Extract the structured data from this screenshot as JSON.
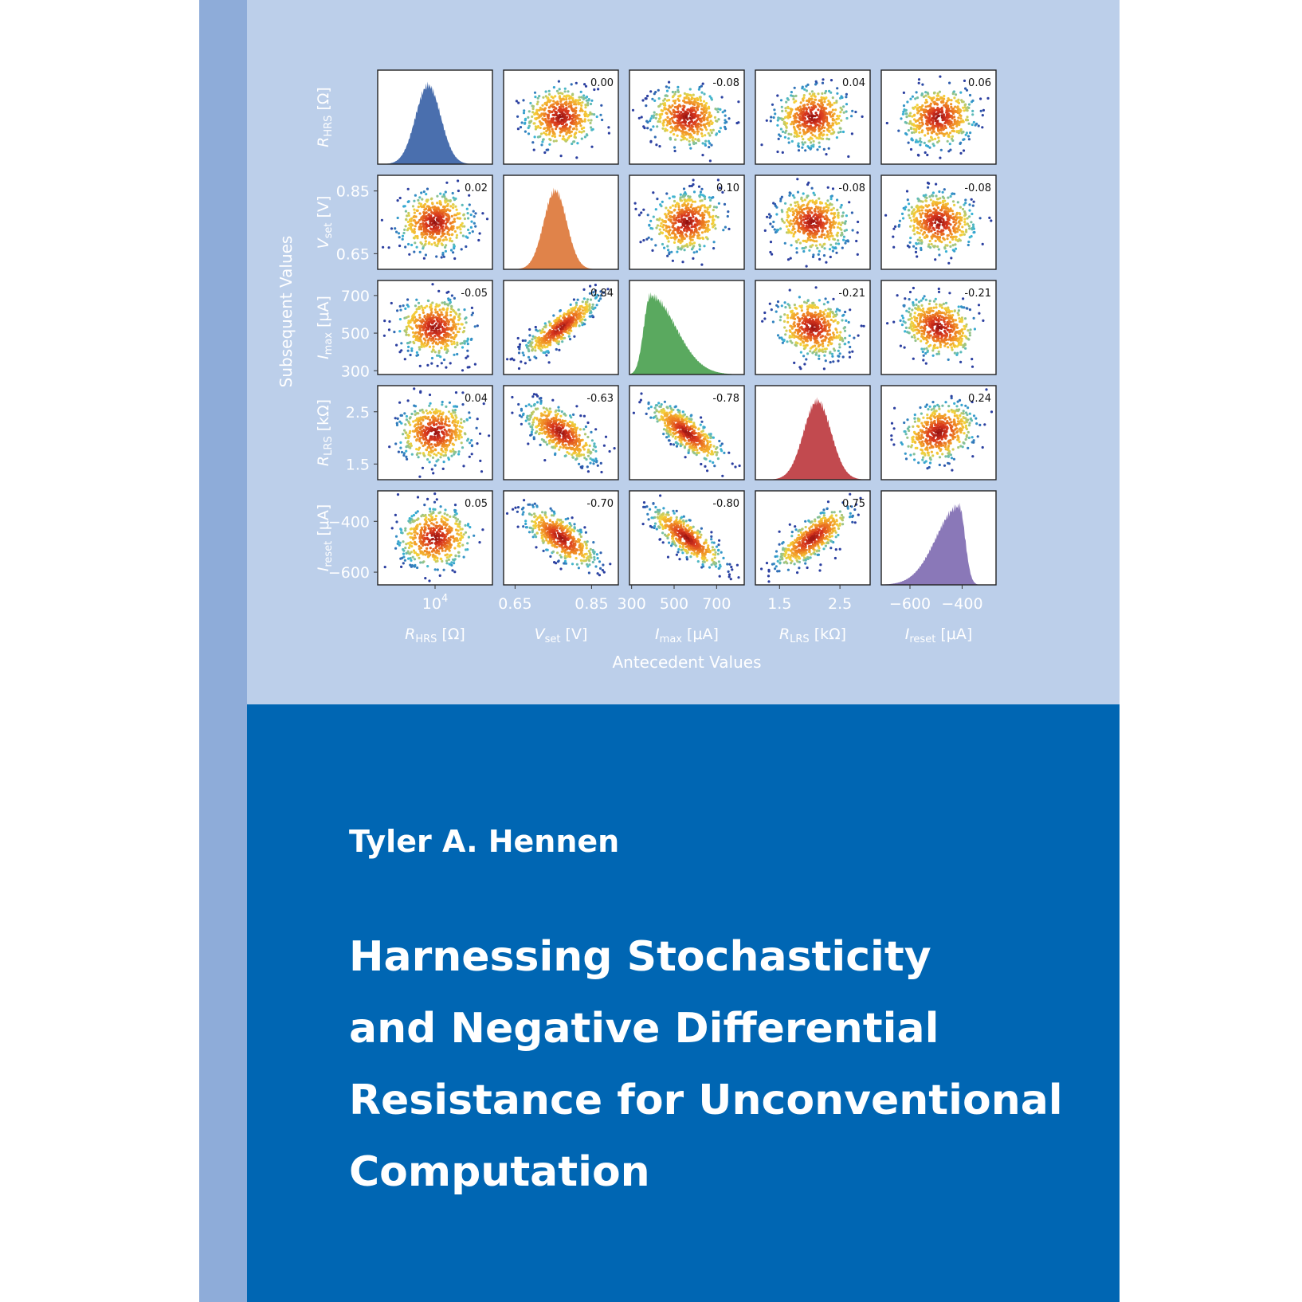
{
  "cover": {
    "author": "Tyler A. Hennen",
    "title_lines": [
      "Harnessing Stochasticity",
      "and Negative Differential",
      "Resistance for Unconventional",
      "Computation"
    ]
  },
  "colors": {
    "spine": "#8eacd9",
    "upper_panel": "#bccfea",
    "lower_panel": "#0066b3",
    "histograms": [
      "#4a6fae",
      "#e0834a",
      "#5aa95f",
      "#c24a4f",
      "#8a78b8"
    ],
    "scatter_gradient": [
      "#2b3fa0",
      "#39b4d6",
      "#f5d33a",
      "#f08a24",
      "#d8361e",
      "#8e0f10"
    ]
  },
  "chart_data": {
    "type": "scatter",
    "layout": "5x5 pair plot (histograms on diagonal, scatter off-diagonal)",
    "variables": [
      {
        "key": "RHRS",
        "symbol": "R",
        "sub": "HRS",
        "unit": " [Ω]"
      },
      {
        "key": "Vset",
        "symbol": "V",
        "sub": "set",
        "unit": " [V]"
      },
      {
        "key": "Imax",
        "symbol": "I",
        "sub": "max",
        "unit": " [μA]"
      },
      {
        "key": "RLRS",
        "symbol": "R",
        "sub": "LRS",
        "unit": " [kΩ]"
      },
      {
        "key": "Ireset",
        "symbol": "I",
        "sub": "reset",
        "unit": " [μA]"
      }
    ],
    "xlabel": "Antecedent Values",
    "ylabel": "Subsequent Values",
    "x_ticks": [
      [
        {
          "v": 0.5,
          "label": "10",
          "sup": "4"
        }
      ],
      [
        {
          "v": 0.65,
          "label": "0.65"
        },
        {
          "v": 0.85,
          "label": "0.85"
        }
      ],
      [
        {
          "v": 300,
          "label": "300"
        },
        {
          "v": 500,
          "label": "500"
        },
        {
          "v": 700,
          "label": "700"
        }
      ],
      [
        {
          "v": 1.5,
          "label": "1.5"
        },
        {
          "v": 2.5,
          "label": "2.5"
        }
      ],
      [
        {
          "v": -600,
          "label": "−600"
        },
        {
          "v": -400,
          "label": "−400"
        }
      ]
    ],
    "x_ranges": [
      [
        0,
        1
      ],
      [
        0.62,
        0.92
      ],
      [
        290,
        830
      ],
      [
        1.1,
        3.0
      ],
      [
        -710,
        -270
      ]
    ],
    "y_ticks": [
      [],
      [
        {
          "v": 0.85,
          "label": "0.85"
        },
        {
          "v": 0.65,
          "label": "0.65"
        }
      ],
      [
        {
          "v": 700,
          "label": "700"
        },
        {
          "v": 500,
          "label": "500"
        },
        {
          "v": 300,
          "label": "300"
        }
      ],
      [
        {
          "v": 2.5,
          "label": "2.5"
        },
        {
          "v": 1.5,
          "label": "1.5"
        }
      ],
      [
        {
          "v": -400,
          "label": "−400"
        },
        {
          "v": -600,
          "label": "−600"
        }
      ]
    ],
    "y_ranges": [
      [
        0,
        1
      ],
      [
        0.6,
        0.9
      ],
      [
        280,
        780
      ],
      [
        1.2,
        3.0
      ],
      [
        -650,
        -280
      ]
    ],
    "correlations": [
      [
        null,
        "0.00",
        "-0.08",
        "0.04",
        "0.06"
      ],
      [
        "0.02",
        null,
        "0.10",
        "-0.08",
        "-0.08"
      ],
      [
        "-0.05",
        "0.84",
        null,
        "-0.21",
        "-0.21"
      ],
      [
        "0.04",
        "-0.63",
        "-0.78",
        null,
        "0.24"
      ],
      [
        "0.05",
        "-0.70",
        "-0.80",
        "0.75",
        null
      ]
    ]
  }
}
